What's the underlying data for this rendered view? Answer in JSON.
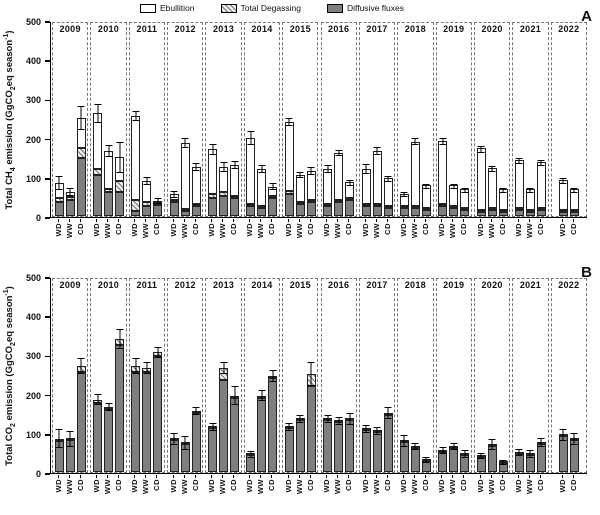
{
  "chart_data": [
    {
      "type": "bar",
      "stacked": true,
      "panel": "A",
      "ylabel": "Total CH4 emission (GgCO2eq season-1)",
      "ylabel_parts": [
        {
          "text": "Total CH"
        },
        {
          "text": "4",
          "script": "sub"
        },
        {
          "text": " emission (GgCO"
        },
        {
          "text": "2",
          "script": "sub"
        },
        {
          "text": "eq season"
        },
        {
          "text": "-1",
          "script": "sup"
        },
        {
          "text": ")"
        }
      ],
      "ylim": [
        0,
        500
      ],
      "yticks": [
        0,
        100,
        200,
        300,
        400,
        500
      ],
      "legend": [
        "Ebullition",
        "Total Degassing",
        "Diffusive fluxes"
      ],
      "series_order": [
        "diffusive",
        "degassing",
        "ebullition"
      ],
      "groups": [
        {
          "year": "2009",
          "bars": [
            {
              "season": "WD",
              "diffusive": 35,
              "degassing": 12,
              "ebullition": 38,
              "error": 18
            },
            {
              "season": "WW",
              "diffusive": 40,
              "degassing": 8,
              "ebullition": 14,
              "error": 10
            },
            {
              "season": "CD",
              "diffusive": 148,
              "degassing": 25,
              "ebullition": 77,
              "error": 30
            }
          ]
        },
        {
          "year": "2010",
          "bars": [
            {
              "season": "WD",
              "diffusive": 105,
              "degassing": 15,
              "ebullition": 142,
              "error": 25
            },
            {
              "season": "WW",
              "diffusive": 60,
              "degassing": 10,
              "ebullition": 95,
              "error": 15
            },
            {
              "season": "CD",
              "diffusive": 60,
              "degassing": 30,
              "ebullition": 60,
              "error": 40
            }
          ]
        },
        {
          "year": "2011",
          "bars": [
            {
              "season": "WD",
              "diffusive": 12,
              "degassing": 28,
              "ebullition": 215,
              "error": 12
            },
            {
              "season": "WW",
              "diffusive": 25,
              "degassing": 10,
              "ebullition": 55,
              "error": 10
            },
            {
              "season": "CD",
              "diffusive": 28,
              "degassing": 6,
              "ebullition": 4,
              "error": 8
            }
          ]
        },
        {
          "year": "2012",
          "bars": [
            {
              "season": "WD",
              "diffusive": 35,
              "degassing": 6,
              "ebullition": 14,
              "error": 10
            },
            {
              "season": "WW",
              "diffusive": 12,
              "degassing": 6,
              "ebullition": 168,
              "error": 12
            },
            {
              "season": "CD",
              "diffusive": 25,
              "degassing": 4,
              "ebullition": 96,
              "error": 10
            }
          ]
        },
        {
          "year": "2013",
          "bars": [
            {
              "season": "WD",
              "diffusive": 45,
              "degassing": 10,
              "ebullition": 115,
              "error": 15
            },
            {
              "season": "WW",
              "diffusive": 50,
              "degassing": 12,
              "ebullition": 63,
              "error": 12
            },
            {
              "season": "CD",
              "diffusive": 45,
              "degassing": 6,
              "ebullition": 79,
              "error": 10
            }
          ]
        },
        {
          "year": "2014",
          "bars": [
            {
              "season": "WD",
              "diffusive": 25,
              "degassing": 6,
              "ebullition": 169,
              "error": 18
            },
            {
              "season": "WW",
              "diffusive": 20,
              "degassing": 5,
              "ebullition": 95,
              "error": 10
            },
            {
              "season": "CD",
              "diffusive": 45,
              "degassing": 5,
              "ebullition": 25,
              "error": 8
            }
          ]
        },
        {
          "year": "2015",
          "bars": [
            {
              "season": "WD",
              "diffusive": 55,
              "degassing": 10,
              "ebullition": 175,
              "error": 10
            },
            {
              "season": "WW",
              "diffusive": 30,
              "degassing": 5,
              "ebullition": 70,
              "error": 8
            },
            {
              "season": "CD",
              "diffusive": 35,
              "degassing": 5,
              "ebullition": 75,
              "error": 10
            }
          ]
        },
        {
          "year": "2016",
          "bars": [
            {
              "season": "WD",
              "diffusive": 25,
              "degassing": 5,
              "ebullition": 90,
              "error": 10
            },
            {
              "season": "WW",
              "diffusive": 35,
              "degassing": 5,
              "ebullition": 120,
              "error": 8
            },
            {
              "season": "CD",
              "diffusive": 40,
              "degassing": 3,
              "ebullition": 42,
              "error": 8
            }
          ]
        },
        {
          "year": "2017",
          "bars": [
            {
              "season": "WD",
              "diffusive": 25,
              "degassing": 5,
              "ebullition": 90,
              "error": 12
            },
            {
              "season": "WW",
              "diffusive": 25,
              "degassing": 5,
              "ebullition": 135,
              "error": 10
            },
            {
              "season": "CD",
              "diffusive": 20,
              "degassing": 3,
              "ebullition": 72,
              "error": 8
            }
          ]
        },
        {
          "year": "2018",
          "bars": [
            {
              "season": "WD",
              "diffusive": 20,
              "degassing": 3,
              "ebullition": 32,
              "error": 6
            },
            {
              "season": "WW",
              "diffusive": 20,
              "degassing": 5,
              "ebullition": 165,
              "error": 10
            },
            {
              "season": "CD",
              "diffusive": 15,
              "degassing": 2,
              "ebullition": 58,
              "error": 6
            }
          ]
        },
        {
          "year": "2019",
          "bars": [
            {
              "season": "WD",
              "diffusive": 25,
              "degassing": 5,
              "ebullition": 160,
              "error": 10
            },
            {
              "season": "WW",
              "diffusive": 20,
              "degassing": 2,
              "ebullition": 53,
              "error": 6
            },
            {
              "season": "CD",
              "diffusive": 15,
              "degassing": 2,
              "ebullition": 48,
              "error": 6
            }
          ]
        },
        {
          "year": "2020",
          "bars": [
            {
              "season": "WD",
              "diffusive": 10,
              "degassing": 2,
              "ebullition": 158,
              "error": 8
            },
            {
              "season": "WW",
              "diffusive": 15,
              "degassing": 2,
              "ebullition": 103,
              "error": 8
            },
            {
              "season": "CD",
              "diffusive": 10,
              "degassing": 2,
              "ebullition": 53,
              "error": 6
            }
          ]
        },
        {
          "year": "2021",
          "bars": [
            {
              "season": "WD",
              "diffusive": 15,
              "degassing": 2,
              "ebullition": 123,
              "error": 8
            },
            {
              "season": "WW",
              "diffusive": 10,
              "degassing": 2,
              "ebullition": 53,
              "error": 6
            },
            {
              "season": "CD",
              "diffusive": 15,
              "degassing": 2,
              "ebullition": 118,
              "error": 8
            }
          ]
        },
        {
          "year": "2022",
          "bars": [
            {
              "season": "WD",
              "diffusive": 10,
              "degassing": 2,
              "ebullition": 78,
              "error": 8
            },
            {
              "season": "CD",
              "diffusive": 10,
              "degassing": 2,
              "ebullition": 53,
              "error": 6
            }
          ]
        }
      ]
    },
    {
      "type": "bar",
      "stacked": true,
      "panel": "B",
      "ylabel": "Total CO2 emission (GgCO2eq season-1)",
      "ylabel_parts": [
        {
          "text": "Total CO"
        },
        {
          "text": "2",
          "script": "sub"
        },
        {
          "text": " emission (GgCO"
        },
        {
          "text": "2",
          "script": "sub"
        },
        {
          "text": "eq season"
        },
        {
          "text": "-1",
          "script": "sup"
        },
        {
          "text": ")"
        }
      ],
      "ylim": [
        0,
        500
      ],
      "yticks": [
        0,
        100,
        200,
        300,
        400,
        500
      ],
      "legend": [],
      "series_order": [
        "diffusive",
        "degassing",
        "ebullition"
      ],
      "groups": [
        {
          "year": "2009",
          "bars": [
            {
              "season": "WD",
              "diffusive": 80,
              "degassing": 5,
              "ebullition": 0,
              "error": 25
            },
            {
              "season": "WW",
              "diffusive": 82,
              "degassing": 3,
              "ebullition": 0,
              "error": 20
            },
            {
              "season": "CD",
              "diffusive": 255,
              "degassing": 15,
              "ebullition": 0,
              "error": 20
            }
          ]
        },
        {
          "year": "2010",
          "bars": [
            {
              "season": "WD",
              "diffusive": 175,
              "degassing": 10,
              "ebullition": 0,
              "error": 15
            },
            {
              "season": "WW",
              "diffusive": 162,
              "degassing": 3,
              "ebullition": 0,
              "error": 10
            },
            {
              "season": "CD",
              "diffusive": 325,
              "degassing": 15,
              "ebullition": 0,
              "error": 25
            }
          ]
        },
        {
          "year": "2011",
          "bars": [
            {
              "season": "WD",
              "diffusive": 255,
              "degassing": 15,
              "ebullition": 0,
              "error": 20
            },
            {
              "season": "WW",
              "diffusive": 255,
              "degassing": 10,
              "ebullition": 0,
              "error": 15
            },
            {
              "season": "CD",
              "diffusive": 295,
              "degassing": 10,
              "ebullition": 0,
              "error": 15
            }
          ]
        },
        {
          "year": "2012",
          "bars": [
            {
              "season": "WD",
              "diffusive": 82,
              "degassing": 3,
              "ebullition": 0,
              "error": 15
            },
            {
              "season": "WW",
              "diffusive": 72,
              "degassing": 3,
              "ebullition": 0,
              "error": 18
            },
            {
              "season": "CD",
              "diffusive": 150,
              "degassing": 5,
              "ebullition": 0,
              "error": 10
            }
          ]
        },
        {
          "year": "2013",
          "bars": [
            {
              "season": "WD",
              "diffusive": 112,
              "degassing": 3,
              "ebullition": 0,
              "error": 10
            },
            {
              "season": "WW",
              "diffusive": 235,
              "degassing": 30,
              "ebullition": 0,
              "error": 15
            },
            {
              "season": "CD",
              "diffusive": 190,
              "degassing": 5,
              "ebullition": 0,
              "error": 25
            }
          ]
        },
        {
          "year": "2014",
          "bars": [
            {
              "season": "WD",
              "diffusive": 43,
              "degassing": 2,
              "ebullition": 0,
              "error": 8
            },
            {
              "season": "WW",
              "diffusive": 190,
              "degassing": 5,
              "ebullition": 0,
              "error": 15
            },
            {
              "season": "CD",
              "diffusive": 240,
              "degassing": 5,
              "ebullition": 0,
              "error": 15
            }
          ]
        },
        {
          "year": "2015",
          "bars": [
            {
              "season": "WD",
              "diffusive": 112,
              "degassing": 3,
              "ebullition": 0,
              "error": 10
            },
            {
              "season": "WW",
              "diffusive": 132,
              "degassing": 3,
              "ebullition": 0,
              "error": 10
            },
            {
              "season": "CD",
              "diffusive": 220,
              "degassing": 30,
              "ebullition": 0,
              "error": 30
            }
          ]
        },
        {
          "year": "2016",
          "bars": [
            {
              "season": "WD",
              "diffusive": 132,
              "degassing": 3,
              "ebullition": 0,
              "error": 10
            },
            {
              "season": "WW",
              "diffusive": 127,
              "degassing": 3,
              "ebullition": 0,
              "error": 10
            },
            {
              "season": "CD",
              "diffusive": 132,
              "degassing": 3,
              "ebullition": 0,
              "error": 15
            }
          ]
        },
        {
          "year": "2017",
          "bars": [
            {
              "season": "WD",
              "diffusive": 107,
              "degassing": 3,
              "ebullition": 0,
              "error": 10
            },
            {
              "season": "WW",
              "diffusive": 102,
              "degassing": 3,
              "ebullition": 0,
              "error": 10
            },
            {
              "season": "CD",
              "diffusive": 145,
              "degassing": 5,
              "ebullition": 0,
              "error": 15
            }
          ]
        },
        {
          "year": "2018",
          "bars": [
            {
              "season": "WD",
              "diffusive": 77,
              "degassing": 3,
              "ebullition": 0,
              "error": 15
            },
            {
              "season": "WW",
              "diffusive": 62,
              "degassing": 3,
              "ebullition": 0,
              "error": 10
            },
            {
              "season": "CD",
              "diffusive": 28,
              "degassing": 2,
              "ebullition": 0,
              "error": 8
            }
          ]
        },
        {
          "year": "2019",
          "bars": [
            {
              "season": "WD",
              "diffusive": 52,
              "degassing": 3,
              "ebullition": 0,
              "error": 10
            },
            {
              "season": "WW",
              "diffusive": 62,
              "degassing": 3,
              "ebullition": 0,
              "error": 10
            },
            {
              "season": "CD",
              "diffusive": 43,
              "degassing": 2,
              "ebullition": 0,
              "error": 10
            }
          ]
        },
        {
          "year": "2020",
          "bars": [
            {
              "season": "WD",
              "diffusive": 38,
              "degassing": 2,
              "ebullition": 0,
              "error": 8
            },
            {
              "season": "WW",
              "diffusive": 67,
              "degassing": 3,
              "ebullition": 0,
              "error": 15
            },
            {
              "season": "CD",
              "diffusive": 23,
              "degassing": 2,
              "ebullition": 0,
              "error": 6
            }
          ]
        },
        {
          "year": "2021",
          "bars": [
            {
              "season": "WD",
              "diffusive": 47,
              "degassing": 3,
              "ebullition": 0,
              "error": 10
            },
            {
              "season": "WW",
              "diffusive": 43,
              "degassing": 2,
              "ebullition": 0,
              "error": 10
            },
            {
              "season": "CD",
              "diffusive": 72,
              "degassing": 3,
              "ebullition": 0,
              "error": 12
            }
          ]
        },
        {
          "year": "2022",
          "bars": [
            {
              "season": "WD",
              "diffusive": 92,
              "degassing": 3,
              "ebullition": 0,
              "error": 15
            },
            {
              "season": "CD",
              "diffusive": 82,
              "degassing": 3,
              "ebullition": 0,
              "error": 15
            }
          ]
        }
      ]
    }
  ]
}
